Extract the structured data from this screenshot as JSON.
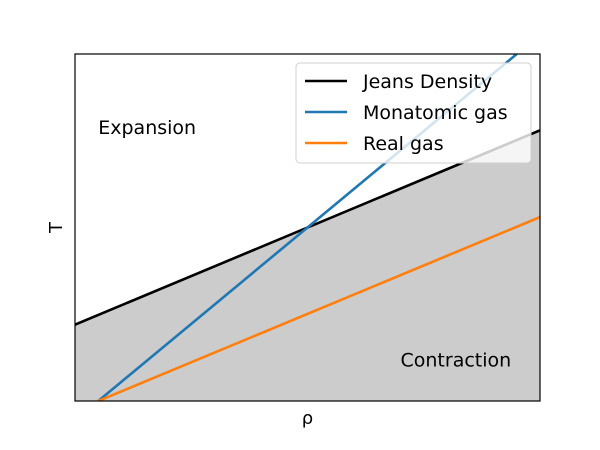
{
  "chart_data": {
    "type": "line",
    "xlabel": "ρ",
    "ylabel": "T",
    "xlim": [
      0,
      1
    ],
    "ylim": [
      0,
      1
    ],
    "xticks": [],
    "yticks": [],
    "grid": false,
    "legend_placement": "top-right",
    "series": [
      {
        "name": "Jeans Density",
        "color": "#000000",
        "x": [
          0,
          1
        ],
        "y": [
          0.22,
          0.78
        ]
      },
      {
        "name": "Monatomic gas",
        "color": "#1f77b4",
        "x": [
          0.05,
          0.95
        ],
        "y": [
          0.0,
          1.0
        ]
      },
      {
        "name": "Real gas",
        "color": "#ff7f0e",
        "x": [
          0.05,
          1.0
        ],
        "y": [
          0.0,
          0.53
        ]
      }
    ],
    "shaded_region": {
      "description_color": "#cccccc",
      "below_series": "Jeans Density"
    },
    "annotations": [
      {
        "text": "Expansion",
        "x": 0.05,
        "y": 0.77
      },
      {
        "text": "Contraction",
        "x": 0.7,
        "y": 0.1
      }
    ]
  }
}
